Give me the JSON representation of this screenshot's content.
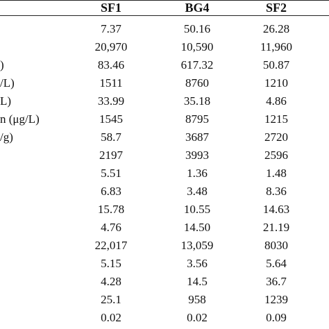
{
  "table": {
    "columns": [
      "SF1",
      "BG4",
      "SF2"
    ],
    "rows": [
      {
        "label": "",
        "values": [
          "7.37",
          "50.16",
          "26.28"
        ]
      },
      {
        "label": "",
        "values": [
          "20,970",
          "10,590",
          "11,960"
        ]
      },
      {
        "label": ")",
        "values": [
          "83.46",
          "617.32",
          "50.87"
        ]
      },
      {
        "label": "/L)",
        "values": [
          "1511",
          "8760",
          "1210"
        ]
      },
      {
        "label": "L)",
        "values": [
          "33.99",
          "35.18",
          "4.86"
        ]
      },
      {
        "label": "n (μg/L)",
        "values": [
          "1545",
          "8795",
          "1215"
        ]
      },
      {
        "label": "/g)",
        "values": [
          "58.7",
          "3687",
          "2720"
        ]
      },
      {
        "label": "",
        "values": [
          "2197",
          "3993",
          "2596"
        ]
      },
      {
        "label": "",
        "values": [
          "5.51",
          "1.36",
          "1.48"
        ]
      },
      {
        "label": "",
        "values": [
          "6.83",
          "3.48",
          "8.36"
        ]
      },
      {
        "label": "",
        "values": [
          "15.78",
          "10.55",
          "14.63"
        ]
      },
      {
        "label": "",
        "values": [
          "4.76",
          "14.50",
          "21.19"
        ]
      },
      {
        "label": "",
        "values": [
          "22,017",
          "13,059",
          "8030"
        ]
      },
      {
        "label": "",
        "values": [
          "5.15",
          "3.56",
          "5.64"
        ]
      },
      {
        "label": "",
        "values": [
          "4.28",
          "14.5",
          "36.7"
        ]
      },
      {
        "label": "",
        "values": [
          "25.1",
          "958",
          "1239"
        ]
      },
      {
        "label": "",
        "values": [
          "0.02",
          "0.02",
          "0.09"
        ]
      }
    ]
  }
}
